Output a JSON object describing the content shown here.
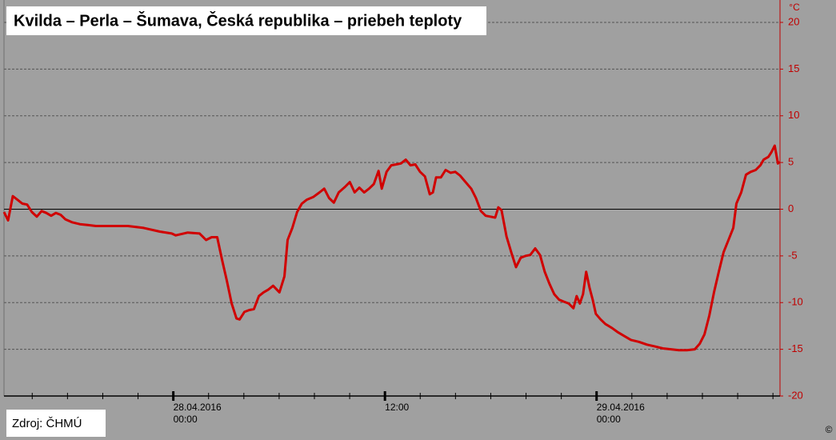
{
  "chart_data": {
    "type": "line",
    "title": "Kvilda – Perla – Šumava, Česká republika – priebeh teploty",
    "unit": "°C",
    "source": "Zdroj: ČHMÚ",
    "copyright": "©",
    "color": "#d00000",
    "grid": true,
    "zero_line": true,
    "xlim": [
      -9.6,
      34.4
    ],
    "xticks": [
      {
        "value": 0,
        "label": [
          "28.04.2016",
          "00:00"
        ]
      },
      {
        "value": 12,
        "label": "12:00"
      },
      {
        "value": 24,
        "label": [
          "29.04.2016",
          "00:00"
        ]
      }
    ],
    "xticks_minor": [
      -8,
      -6,
      -4,
      -2,
      0,
      2,
      4,
      6,
      8,
      10,
      12,
      14,
      16,
      18,
      20,
      22,
      24,
      26,
      28,
      30,
      32,
      34
    ],
    "ylim": [
      -20,
      20
    ],
    "yticks": [
      -20,
      -15,
      -10,
      -5,
      0,
      5,
      10,
      15,
      20
    ],
    "x": [
      -9.6,
      -9.37,
      -9.1,
      -8.83,
      -8.56,
      -8.29,
      -8.02,
      -7.74,
      -7.47,
      -7.2,
      -6.93,
      -6.66,
      -6.39,
      -6.11,
      -5.75,
      -5.3,
      -4.85,
      -4.39,
      -3.49,
      -2.58,
      -1.68,
      -0.77,
      -0.09,
      0.14,
      0.82,
      1.49,
      1.86,
      2.17,
      2.49,
      2.76,
      3.03,
      3.31,
      3.58,
      3.76,
      4.03,
      4.3,
      4.57,
      4.85,
      5.12,
      5.39,
      5.66,
      6.02,
      6.3,
      6.48,
      6.75,
      7.02,
      7.29,
      7.56,
      7.93,
      8.29,
      8.56,
      8.83,
      9.1,
      9.38,
      9.74,
      10.01,
      10.28,
      10.55,
      10.82,
      11.1,
      11.37,
      11.64,
      11.82,
      12.09,
      12.36,
      12.64,
      12.91,
      13.18,
      13.45,
      13.72,
      13.99,
      14.27,
      14.54,
      14.72,
      14.9,
      15.17,
      15.44,
      15.72,
      15.99,
      16.26,
      16.53,
      16.89,
      17.16,
      17.44,
      17.71,
      17.98,
      18.25,
      18.43,
      18.61,
      18.89,
      19.16,
      19.43,
      19.7,
      19.97,
      20.24,
      20.52,
      20.79,
      21.06,
      21.33,
      21.6,
      21.88,
      22.15,
      22.42,
      22.69,
      22.87,
      23.05,
      23.23,
      23.41,
      23.6,
      23.78,
      23.96,
      24.23,
      24.5,
      24.86,
      25.23,
      25.59,
      25.95,
      26.4,
      26.86,
      27.31,
      27.76,
      28.22,
      28.67,
      29.12,
      29.57,
      29.85,
      30.12,
      30.39,
      30.66,
      30.93,
      31.2,
      31.48,
      31.75,
      31.93,
      32.2,
      32.47,
      32.74,
      33.02,
      33.29,
      33.47,
      33.74,
      33.91,
      34.1,
      34.28,
      34.37
    ],
    "values": [
      -0.3,
      -1.2,
      1.4,
      1.0,
      0.6,
      0.5,
      -0.3,
      -0.8,
      -0.2,
      -0.4,
      -0.7,
      -0.4,
      -0.6,
      -1.1,
      -1.4,
      -1.6,
      -1.7,
      -1.8,
      -1.8,
      -1.8,
      -2.0,
      -2.4,
      -2.6,
      -2.8,
      -2.5,
      -2.6,
      -3.3,
      -3.0,
      -3.0,
      -5.4,
      -7.6,
      -10.1,
      -11.7,
      -11.8,
      -11.0,
      -10.8,
      -10.7,
      -9.3,
      -8.9,
      -8.6,
      -8.2,
      -8.9,
      -7.2,
      -3.3,
      -2.0,
      -0.3,
      0.6,
      1.0,
      1.3,
      1.8,
      2.2,
      1.2,
      0.7,
      1.8,
      2.4,
      2.9,
      1.8,
      2.3,
      1.8,
      2.2,
      2.7,
      4.1,
      2.2,
      4.0,
      4.7,
      4.8,
      4.9,
      5.3,
      4.7,
      4.8,
      4.0,
      3.5,
      1.6,
      1.8,
      3.4,
      3.4,
      4.2,
      3.9,
      4.0,
      3.6,
      3.0,
      2.2,
      1.2,
      -0.2,
      -0.7,
      -0.8,
      -0.9,
      0.2,
      -0.1,
      -2.9,
      -4.6,
      -6.2,
      -5.2,
      -5.0,
      -4.9,
      -4.2,
      -4.9,
      -6.7,
      -8.0,
      -9.1,
      -9.7,
      -9.9,
      -10.1,
      -10.6,
      -9.3,
      -10.1,
      -9.1,
      -6.7,
      -8.4,
      -9.7,
      -11.2,
      -11.8,
      -12.3,
      -12.7,
      -13.2,
      -13.6,
      -14.0,
      -14.2,
      -14.5,
      -14.7,
      -14.9,
      -15.0,
      -15.1,
      -15.1,
      -15.0,
      -14.4,
      -13.4,
      -11.4,
      -8.9,
      -6.7,
      -4.6,
      -3.3,
      -2.0,
      0.6,
      1.8,
      3.7,
      4.0,
      4.2,
      4.7,
      5.3,
      5.6,
      6.1,
      6.8,
      4.9,
      5.1
    ]
  }
}
